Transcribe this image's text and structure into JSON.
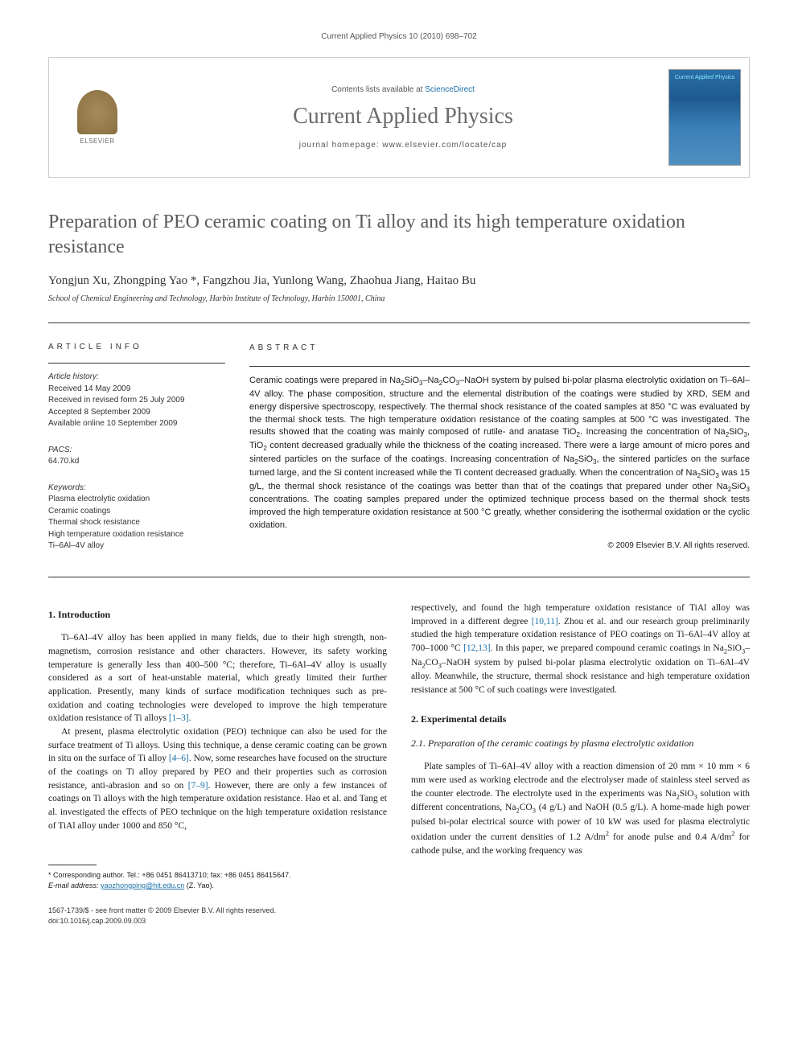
{
  "running_header": "Current Applied Physics 10 (2010) 698–702",
  "masthead": {
    "publisher_label": "ELSEVIER",
    "contents_prefix": "Contents lists available at ",
    "contents_link": "ScienceDirect",
    "journal_name": "Current Applied Physics",
    "homepage_prefix": "journal homepage: ",
    "homepage_url": "www.elsevier.com/locate/cap",
    "cover_title": "Current Applied Physics"
  },
  "article": {
    "title": "Preparation of PEO ceramic coating on Ti alloy and its high temperature oxidation resistance",
    "authors_html": "Yongjun Xu, Zhongping Yao *, Fangzhou Jia, Yunlong Wang, Zhaohua Jiang, Haitao Bu",
    "affiliation": "School of Chemical Engineering and Technology, Harbin Institute of Technology, Harbin 150001, China"
  },
  "info": {
    "label": "ARTICLE INFO",
    "history_heading": "Article history:",
    "history_lines": [
      "Received 14 May 2009",
      "Received in revised form 25 July 2009",
      "Accepted 8 September 2009",
      "Available online 10 September 2009"
    ],
    "pacs_heading": "PACS:",
    "pacs_value": "64.70.kd",
    "keywords_heading": "Keywords:",
    "keywords": [
      "Plasma electrolytic oxidation",
      "Ceramic coatings",
      "Thermal shock resistance",
      "High temperature oxidation resistance",
      "Ti–6Al–4V alloy"
    ]
  },
  "abstract": {
    "label": "ABSTRACT",
    "text_html": "Ceramic coatings were prepared in Na<sub>2</sub>SiO<sub>3</sub>–Na<sub>2</sub>CO<sub>3</sub>–NaOH system by pulsed bi-polar plasma electrolytic oxidation on Ti–6Al–4V alloy. The phase composition, structure and the elemental distribution of the coatings were studied by XRD, SEM and energy dispersive spectroscopy, respectively. The thermal shock resistance of the coated samples at 850 °C was evaluated by the thermal shock tests. The high temperature oxidation resistance of the coating samples at 500 °C was investigated. The results showed that the coating was mainly composed of rutile- and anatase TiO<sub>2</sub>. Increasing the concentration of Na<sub>2</sub>SiO<sub>3</sub>, TiO<sub>2</sub> content decreased gradually while the thickness of the coating increased. There were a large amount of micro pores and sintered particles on the surface of the coatings. Increasing concentration of Na<sub>2</sub>SiO<sub>3</sub>, the sintered particles on the surface turned large, and the Si content increased while the Ti content decreased gradually. When the concentration of Na<sub>2</sub>SiO<sub>3</sub> was 15 g/L, the thermal shock resistance of the coatings was better than that of the coatings that prepared under other Na<sub>2</sub>SiO<sub>3</sub> concentrations. The coating samples prepared under the optimized technique process based on the thermal shock tests improved the high temperature oxidation resistance at 500 °C greatly, whether considering the isothermal oxidation or the cyclic oxidation.",
    "copyright": "© 2009 Elsevier B.V. All rights reserved."
  },
  "body": {
    "sec1_heading": "1. Introduction",
    "sec1_p1_html": "Ti–6Al–4V alloy has been applied in many fields, due to their high strength, non-magnetism, corrosion resistance and other characters. However, its safety working temperature is generally less than 400–500 °C; therefore, Ti–6Al–4V alloy is usually considered as a sort of heat-unstable material, which greatly limited their further application. Presently, many kinds of surface modification techniques such as pre-oxidation and coating technologies were developed to improve the high temperature oxidation resistance of Ti alloys <span class=\"ref-link\">[1–3]</span>.",
    "sec1_p2_html": "At present, plasma electrolytic oxidation (PEO) technique can also be used for the surface treatment of Ti alloys. Using this technique, a dense ceramic coating can be grown in situ on the surface of Ti alloy <span class=\"ref-link\">[4–6]</span>. Now, some researches have focused on the structure of the coatings on Ti alloy prepared by PEO and their properties such as corrosion resistance, anti-abrasion and so on <span class=\"ref-link\">[7–9]</span>. However, there are only a few instances of coatings on Ti alloys with the high temperature oxidation resistance. Hao et al. and Tang et al. investigated the effects of PEO technique on the high temperature oxidation resistance of TiAl alloy under 1000 and 850 °C,",
    "sec1_p3_html": "respectively, and found the high temperature oxidation resistance of TiAl alloy was improved in a different degree <span class=\"ref-link\">[10,11]</span>. Zhou et al. and our research group preliminarily studied the high temperature oxidation resistance of PEO coatings on Ti–6Al–4V alloy at 700–1000 °C <span class=\"ref-link\">[12,13]</span>. In this paper, we prepared compound ceramic coatings in Na<sub>2</sub>SiO<sub>3</sub>–Na<sub>2</sub>CO<sub>3</sub>–NaOH system by pulsed bi-polar plasma electrolytic oxidation on Ti–6Al–4V alloy. Meanwhile, the structure, thermal shock resistance and high temperature oxidation resistance at 500 °C of such coatings were investigated.",
    "sec2_heading": "2. Experimental details",
    "sec21_heading": "2.1. Preparation of the ceramic coatings by plasma electrolytic oxidation",
    "sec21_p1_html": "Plate samples of Ti–6Al–4V alloy with a reaction dimension of 20 mm × 10 mm × 6 mm were used as working electrode and the electrolyser made of stainless steel served as the counter electrode. The electrolyte used in the experiments was Na<sub>2</sub>SiO<sub>3</sub> solution with different concentrations, Na<sub>2</sub>CO<sub>3</sub> (4 g/L) and NaOH (0.5 g/L). A home-made high power pulsed bi-polar electrical source with power of 10 kW was used for plasma electrolytic oxidation under the current densities of 1.2 A/dm<sup>2</sup> for anode pulse and 0.4 A/dm<sup>2</sup> for cathode pulse, and the working frequency was"
  },
  "footnote": {
    "corr_label": "* Corresponding author. Tel.: +86 0451 86413710; fax: +86 0451 86415647.",
    "email_label": "E-mail address:",
    "email_value": "yaozhongping@hit.edu.cn",
    "email_paren": "(Z. Yao)."
  },
  "footer": {
    "left_line1": "1567-1739/$ - see front matter © 2009 Elsevier B.V. All rights reserved.",
    "left_line2": "doi:10.1016/j.cap.2009.09.003"
  },
  "colors": {
    "link": "#1b6fa8",
    "title_gray": "#5b5b5b",
    "journal_gray": "#6b6b6b",
    "border": "#cccccc",
    "text": "#1a1a1a",
    "cover_bg_top": "#2a6fa8",
    "cover_title": "#87e8ff"
  },
  "typography": {
    "title_fontsize": 24,
    "journal_fontsize": 28,
    "body_fontsize": 11.5,
    "abstract_fontsize": 11,
    "info_fontsize": 10,
    "footnote_fontsize": 9
  }
}
